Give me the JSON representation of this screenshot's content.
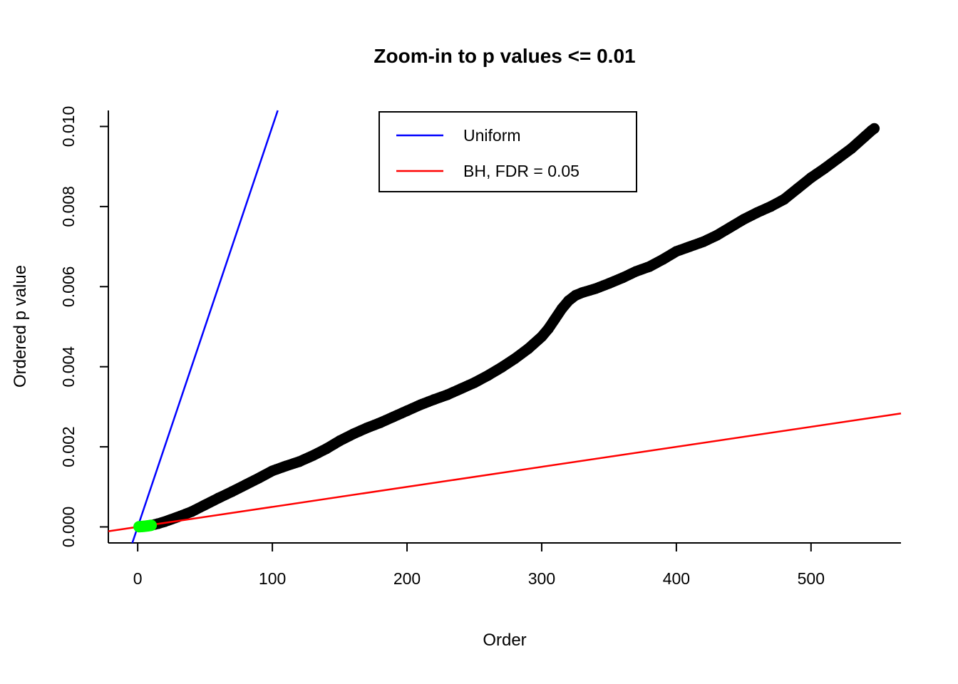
{
  "background": "#FFFFFF",
  "chart_data": {
    "type": "scatter",
    "title": "Zoom-in to p values <= 0.01",
    "xlabel": "Order",
    "ylabel": "Ordered p value",
    "xlim": [
      -21.8,
      566.8
    ],
    "ylim": [
      -0.0004,
      0.0104
    ],
    "grid": false,
    "x_ticks": [
      0,
      100,
      200,
      300,
      400,
      500
    ],
    "x_tick_labels": [
      "0",
      "100",
      "200",
      "300",
      "400",
      "500"
    ],
    "y_ticks": [
      0,
      0.002,
      0.004,
      0.006,
      0.008,
      0.01
    ],
    "y_tick_labels": [
      "0.000",
      "0.002",
      "0.004",
      "0.006",
      "0.008",
      "0.010"
    ],
    "legend": {
      "position": "top-center",
      "items": [
        {
          "label": "Uniform",
          "color": "#0000FF"
        },
        {
          "label": "BH, FDR = 0.05",
          "color": "#FF0000"
        }
      ]
    },
    "reference_lines": [
      {
        "name": "uniform-line",
        "color": "#0000FF",
        "slope": 0.0001,
        "intercept": 0
      },
      {
        "name": "bh-fdr-line",
        "color": "#FF0000",
        "slope": 5e-06,
        "intercept": 0
      }
    ],
    "series": [
      {
        "name": "ordered-p-values",
        "marker": "circle",
        "color": "#000000",
        "points": [
          [
            1,
            5e-06
          ],
          [
            3,
            1e-05
          ],
          [
            6,
            2e-05
          ],
          [
            10,
            4e-05
          ],
          [
            15,
            8e-05
          ],
          [
            20,
            0.00013
          ],
          [
            25,
            0.00019
          ],
          [
            30,
            0.00025
          ],
          [
            40,
            0.00038
          ],
          [
            50,
            0.00055
          ],
          [
            60,
            0.00072
          ],
          [
            70,
            0.00088
          ],
          [
            80,
            0.00105
          ],
          [
            90,
            0.00122
          ],
          [
            100,
            0.0014
          ],
          [
            110,
            0.00152
          ],
          [
            120,
            0.00163
          ],
          [
            130,
            0.00178
          ],
          [
            140,
            0.00195
          ],
          [
            150,
            0.00215
          ],
          [
            160,
            0.00232
          ],
          [
            170,
            0.00247
          ],
          [
            180,
            0.0026
          ],
          [
            190,
            0.00275
          ],
          [
            200,
            0.0029
          ],
          [
            210,
            0.00305
          ],
          [
            220,
            0.00318
          ],
          [
            230,
            0.0033
          ],
          [
            240,
            0.00345
          ],
          [
            250,
            0.0036
          ],
          [
            260,
            0.00378
          ],
          [
            270,
            0.00398
          ],
          [
            280,
            0.0042
          ],
          [
            290,
            0.00445
          ],
          [
            300,
            0.00475
          ],
          [
            305,
            0.00495
          ],
          [
            310,
            0.0052
          ],
          [
            315,
            0.00545
          ],
          [
            320,
            0.00565
          ],
          [
            325,
            0.00578
          ],
          [
            330,
            0.00585
          ],
          [
            340,
            0.00595
          ],
          [
            350,
            0.00608
          ],
          [
            360,
            0.00622
          ],
          [
            370,
            0.00638
          ],
          [
            380,
            0.0065
          ],
          [
            390,
            0.00668
          ],
          [
            400,
            0.00688
          ],
          [
            410,
            0.007
          ],
          [
            420,
            0.00712
          ],
          [
            430,
            0.00728
          ],
          [
            440,
            0.00748
          ],
          [
            450,
            0.00768
          ],
          [
            460,
            0.00785
          ],
          [
            470,
            0.008
          ],
          [
            480,
            0.00818
          ],
          [
            490,
            0.00845
          ],
          [
            500,
            0.00872
          ],
          [
            510,
            0.00895
          ],
          [
            520,
            0.0092
          ],
          [
            530,
            0.00945
          ],
          [
            540,
            0.00975
          ],
          [
            545,
            0.0099
          ],
          [
            547,
            0.00995
          ]
        ]
      },
      {
        "name": "bh-significant-p-values",
        "marker": "filled-circle",
        "color": "#00FF00",
        "points": [
          [
            1,
            5e-06
          ],
          [
            2,
            7e-06
          ],
          [
            3,
            1e-05
          ],
          [
            4,
            1.3e-05
          ],
          [
            5,
            1.6e-05
          ],
          [
            6,
            2e-05
          ],
          [
            7,
            2.4e-05
          ],
          [
            8,
            2.9e-05
          ],
          [
            9,
            3.4e-05
          ],
          [
            10,
            4e-05
          ]
        ]
      }
    ]
  }
}
